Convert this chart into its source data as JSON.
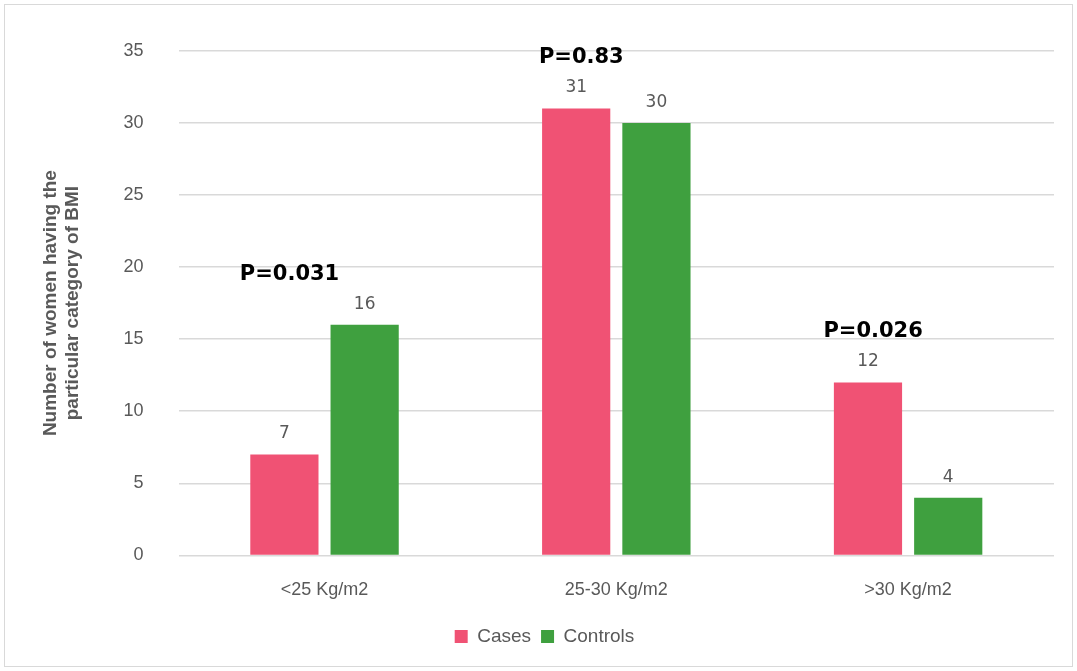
{
  "chart_data": {
    "type": "bar",
    "ylabel": "Number of women having the particular category of BMI",
    "categories": [
      "<25 Kg/m2",
      "25-30 Kg/m2",
      ">30 Kg/m2"
    ],
    "series": [
      {
        "name": "Cases",
        "color": "#f05274",
        "values": [
          7,
          31,
          12
        ]
      },
      {
        "name": "Controls",
        "color": "#3fa03f",
        "values": [
          16,
          30,
          4
        ]
      }
    ],
    "ylim": [
      0,
      35
    ],
    "yticks": [
      0,
      5,
      10,
      15,
      20,
      25,
      30,
      35
    ],
    "grid": "y",
    "legend": "bottom",
    "data_labels": true,
    "annotations": [
      "P=0.031",
      "P=0.83",
      "P=0.026"
    ]
  }
}
